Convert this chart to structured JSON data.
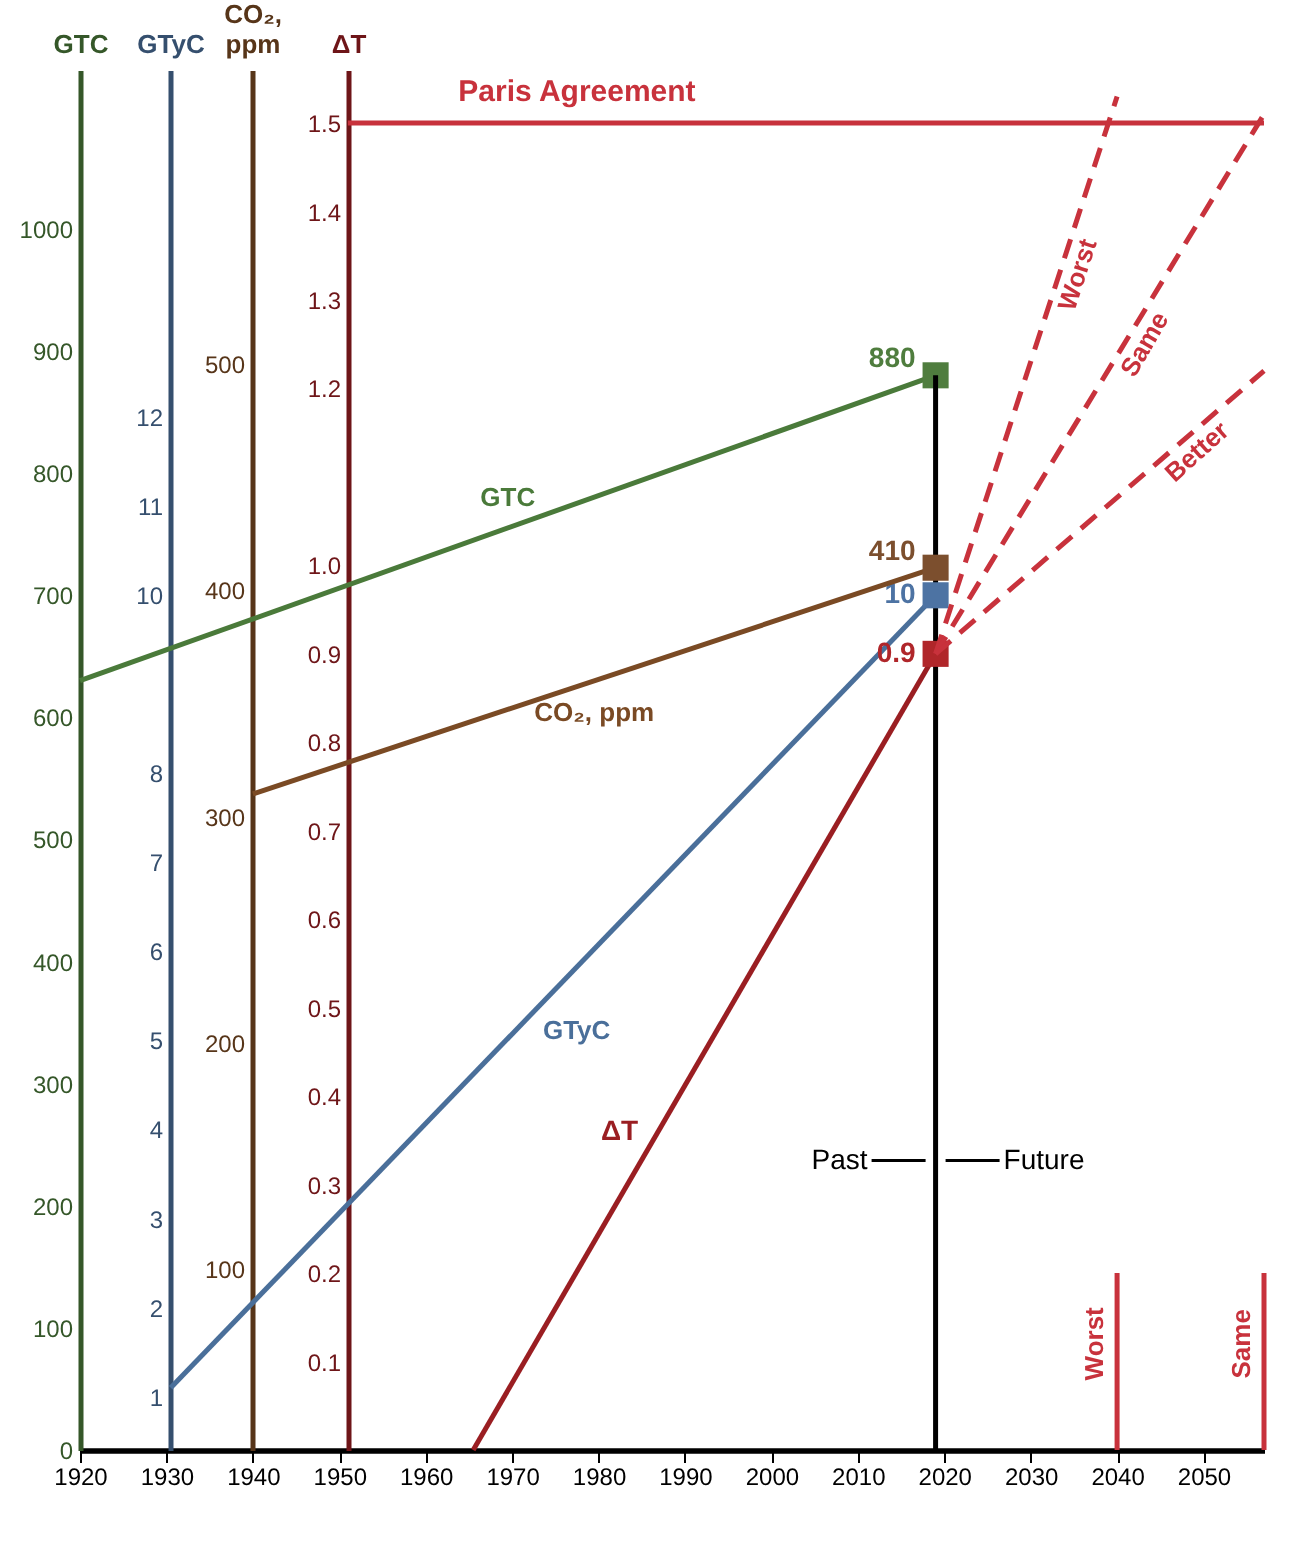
{
  "chart_data": [
    {
      "type": "line",
      "xlim": [
        1920,
        2057
      ],
      "xticks": [
        1920,
        1930,
        1940,
        1950,
        1960,
        1970,
        1980,
        1990,
        2000,
        2010,
        2020,
        2030,
        2040,
        2050
      ],
      "ylabel": "GTC",
      "ylim": [
        0,
        1130
      ],
      "yticks": [
        0,
        100,
        200,
        300,
        400,
        500,
        600,
        700,
        800,
        900,
        1000
      ],
      "y2label": "GTyC",
      "y2lim": [
        0.4,
        15.9
      ],
      "y2ticks": [
        1,
        2,
        3,
        4,
        5,
        6,
        7,
        8,
        10,
        11,
        12
      ],
      "y3label": "CO₂, ppm",
      "y3lim": [
        20,
        630
      ],
      "y3ticks": [
        100,
        200,
        300,
        400,
        500
      ],
      "grid": false,
      "annotations": [
        {
          "text": "Past",
          "x": 2019,
          "y": 237
        },
        {
          "text": "Future",
          "x": 2019,
          "y": 237
        }
      ],
      "series": [
        {
          "name": "GTC",
          "color": "#4a7a3a",
          "x": [
            1920,
            2019
          ],
          "values": [
            630,
            880
          ]
        },
        {
          "type": "scatter",
          "marker": "square",
          "data_labels": true,
          "color": "#4f7d3e",
          "x": [
            2019
          ],
          "values": [
            880
          ]
        },
        {
          "color": "#000000",
          "x": [
            2019,
            2019
          ],
          "values": [
            0,
            880
          ]
        },
        {
          "name": "GTyC",
          "axis": "y2",
          "color": "#4a6f9a",
          "x": [
            1930.5,
            2019
          ],
          "values": [
            1.1,
            10
          ]
        },
        {
          "axis": "y2",
          "type": "scatter",
          "marker": "square",
          "data_labels": true,
          "color": "#4d73a3",
          "x": [
            2019
          ],
          "values": [
            10
          ]
        },
        {
          "name": "CO₂, ppm",
          "axis": "y3",
          "color": "#7a4a24",
          "x": [
            1940,
            2019
          ],
          "values": [
            310,
            410
          ]
        },
        {
          "axis": "y3",
          "type": "scatter",
          "marker": "square",
          "data_labels": true,
          "color": "#7c4f2e",
          "x": [
            2019
          ],
          "values": [
            410
          ]
        }
      ]
    },
    {
      "type": "line",
      "xlim": [
        1920,
        2057
      ],
      "xticks": [
        1920,
        1930,
        1940,
        1950,
        1960,
        1970,
        1980,
        1990,
        2000,
        2010,
        2020,
        2030,
        2040,
        2050
      ],
      "ylabel": "ΔT",
      "ylim": [
        0,
        1.56
      ],
      "yticks": [
        0.1,
        0.2,
        0.3,
        0.4,
        0.5,
        0.6,
        0.7,
        0.8,
        0.9,
        {
          "value": 1,
          "label": "1.0"
        },
        1.2,
        1.3,
        1.4,
        1.5
      ],
      "grid": false,
      "tick_labels": "y",
      "series": [
        {
          "name": "ΔT",
          "color": "#9a1e22",
          "x": [
            1965.5,
            2019
          ],
          "values": [
            0,
            0.9
          ]
        },
        {
          "type": "scatter",
          "marker": "square",
          "data_labels": true,
          "color": "#b0262a",
          "x": [
            2019
          ],
          "values": [
            0.9
          ]
        },
        {
          "name": "Paris Agreement",
          "color": "#c8323c",
          "x": [
            1951,
            2057
          ],
          "values": [
            1.5,
            1.5
          ]
        },
        {
          "name": "Worst",
          "line_style": "dashed",
          "color": "#c8323c",
          "x": [
            2019,
            2040
          ],
          "values": [
            0.9,
            1.53
          ]
        },
        {
          "name": "Same",
          "line_style": "dashed",
          "color": "#c8323c",
          "x": [
            2019,
            2057
          ],
          "values": [
            0.9,
            1.51
          ]
        },
        {
          "name": "Better",
          "line_style": "dashed",
          "color": "#c8323c",
          "x": [
            2019,
            2057
          ],
          "values": [
            0.9,
            1.22
          ]
        },
        {
          "name": "Worst",
          "color": "#c8323c",
          "x": [
            2040,
            2040
          ],
          "values": [
            0,
            0.2
          ]
        },
        {
          "name": "Same",
          "color": "#c8323c",
          "x": [
            2057,
            2057
          ],
          "values": [
            0,
            0.2
          ]
        }
      ]
    }
  ]
}
